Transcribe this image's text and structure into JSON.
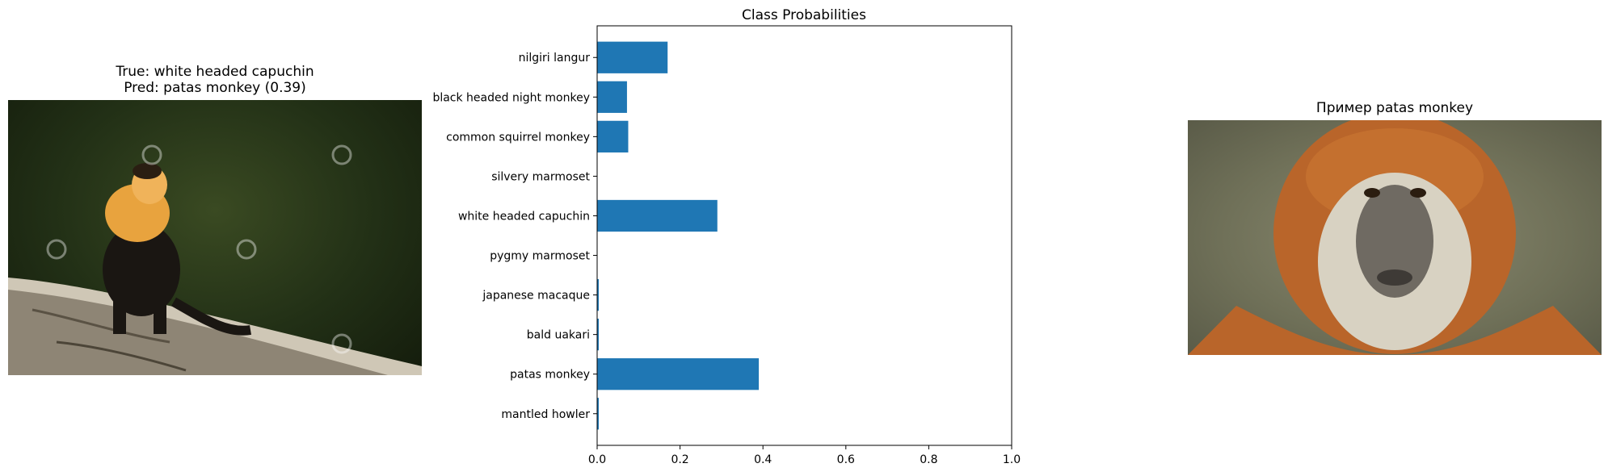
{
  "left_panel": {
    "title_line1": "True: white headed capuchin",
    "title_line2": "Pred: patas monkey (0.39)",
    "image_icon": "monkey-photo-icon"
  },
  "right_panel": {
    "title": "Пример patas monkey",
    "image_icon": "monkey-photo-icon"
  },
  "chart_data": {
    "type": "bar",
    "orientation": "horizontal",
    "title": "Class Probabilities",
    "categories": [
      "mantled howler",
      "patas monkey",
      "bald uakari",
      "japanese macaque",
      "pygmy marmoset",
      "white headed capuchin",
      "silvery marmoset",
      "common squirrel monkey",
      "black headed night monkey",
      "nilgiri langur"
    ],
    "values": [
      0.004,
      0.39,
      0.004,
      0.004,
      0.0,
      0.29,
      0.0,
      0.075,
      0.072,
      0.17
    ],
    "xlim": [
      0,
      1.0
    ],
    "xticks": [
      "0.0",
      "0.2",
      "0.4",
      "0.6",
      "0.8",
      "1.0"
    ],
    "xlabel": "",
    "ylabel": "",
    "grid": false,
    "bar_color": "#1f77b4"
  }
}
